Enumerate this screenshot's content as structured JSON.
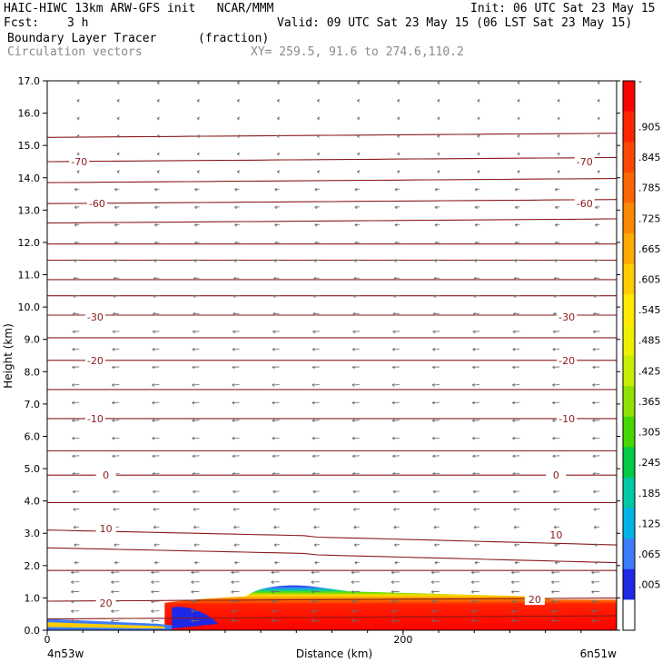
{
  "header": {
    "title_line": "HAIC-HIWC 13km ARW-GFS init   NCAR/MMM",
    "init": "Init: 06 UTC Sat 23 May 15",
    "fcst_label": "Fcst:",
    "fcst_value": "3 h",
    "valid": "Valid: 09 UTC Sat 23 May 15 (06 LST Sat 23 May 15)",
    "field1": "Boundary Layer Tracer",
    "field1_units": "(fraction)",
    "field2": "Circulation vectors",
    "xy": "XY= 259.5, 91.6 to 274.6,110.2"
  },
  "chart_data": {
    "type": "heatmap",
    "xlabel": "Distance (km)",
    "ylabel": "Height (km)",
    "xlim": [
      0,
      320
    ],
    "ylim": [
      0,
      17
    ],
    "x_tick_labels": [
      {
        "x": 0,
        "label": "0"
      },
      {
        "x": 200,
        "label": "200"
      }
    ],
    "x_end_labels": {
      "left": "4n53w",
      "right": "6n51w"
    },
    "y_ticks": [
      "0.0",
      "1.0",
      "2.0",
      "3.0",
      "4.0",
      "5.0",
      "6.0",
      "7.0",
      "8.0",
      "9.0",
      "10.0",
      "11.0",
      "12.0",
      "13.0",
      "14.0",
      "15.0",
      "16.0",
      "17.0"
    ],
    "colorbar": {
      "labels": [
        "-",
        ".905",
        ".845",
        ".785",
        ".725",
        ".665",
        ".605",
        ".545",
        ".485",
        ".425",
        ".365",
        ".305",
        ".245",
        ".185",
        ".125",
        ".065",
        ".005"
      ],
      "colors": [
        "#ff0000",
        "#ff2400",
        "#ff4600",
        "#ff6600",
        "#ff8800",
        "#ffaa00",
        "#ffcc00",
        "#ffea00",
        "#eef000",
        "#c8ee00",
        "#8ee400",
        "#44d800",
        "#00cc44",
        "#00c8a8",
        "#00b4e6",
        "#3c7cff",
        "#1e28e6",
        "#ffffff"
      ]
    },
    "contour_labels": [
      {
        "value": "-70",
        "x": 18,
        "y": 14.5
      },
      {
        "value": "-70",
        "x": 302,
        "y": 14.5
      },
      {
        "value": "-60",
        "x": 28,
        "y": 13.2
      },
      {
        "value": "-60",
        "x": 302,
        "y": 13.2
      },
      {
        "value": "-30",
        "x": 27,
        "y": 9.7
      },
      {
        "value": "-30",
        "x": 292,
        "y": 9.7
      },
      {
        "value": "-20",
        "x": 27,
        "y": 8.35
      },
      {
        "value": "-20",
        "x": 292,
        "y": 8.35
      },
      {
        "value": "-10",
        "x": 27,
        "y": 6.55
      },
      {
        "value": "-10",
        "x": 292,
        "y": 6.55
      },
      {
        "value": "0",
        "x": 33,
        "y": 4.8
      },
      {
        "value": "0",
        "x": 286,
        "y": 4.8
      },
      {
        "value": "10",
        "x": 33,
        "y": 3.15
      },
      {
        "value": "10",
        "x": 286,
        "y": 2.95
      },
      {
        "value": "20",
        "x": 33,
        "y": 0.85
      },
      {
        "value": "20",
        "x": 274,
        "y": 0.95
      }
    ]
  }
}
